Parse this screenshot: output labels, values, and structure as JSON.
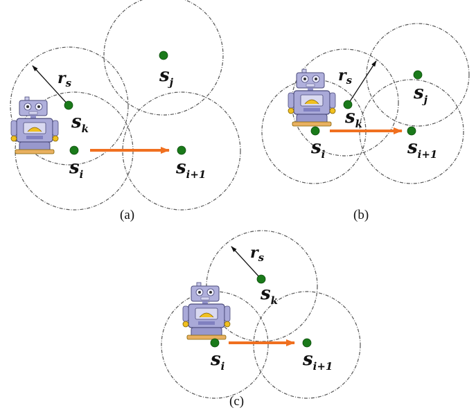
{
  "colors": {
    "node": "#1a7a1a",
    "move_arrow": "#f07020",
    "range_circle": "#555555",
    "robot_body": "#a9a9d8",
    "robot_outline": "#4a4a7a"
  },
  "icons": [
    "robot-icon"
  ],
  "panels": [
    {
      "caption": "(a)",
      "labels": {
        "rs": {
          "main": "r",
          "sub": "s"
        },
        "sk": {
          "main": "s",
          "sub": "k"
        },
        "sj": {
          "main": "s",
          "sub": "j"
        },
        "si": {
          "main": "s",
          "sub": "i"
        },
        "si1": {
          "main": "s",
          "sub": "i+1"
        }
      }
    },
    {
      "caption": "(b)",
      "labels": {
        "rs": {
          "main": "r",
          "sub": "s"
        },
        "sk": {
          "main": "s",
          "sub": "k"
        },
        "sj": {
          "main": "s",
          "sub": "j"
        },
        "si": {
          "main": "s",
          "sub": "i"
        },
        "si1": {
          "main": "s",
          "sub": "i+1"
        }
      }
    },
    {
      "caption": "(c)",
      "labels": {
        "rs": {
          "main": "r",
          "sub": "s"
        },
        "sk": {
          "main": "s",
          "sub": "k"
        },
        "si": {
          "main": "s",
          "sub": "i"
        },
        "si1": {
          "main": "s",
          "sub": "i+1"
        }
      }
    }
  ]
}
